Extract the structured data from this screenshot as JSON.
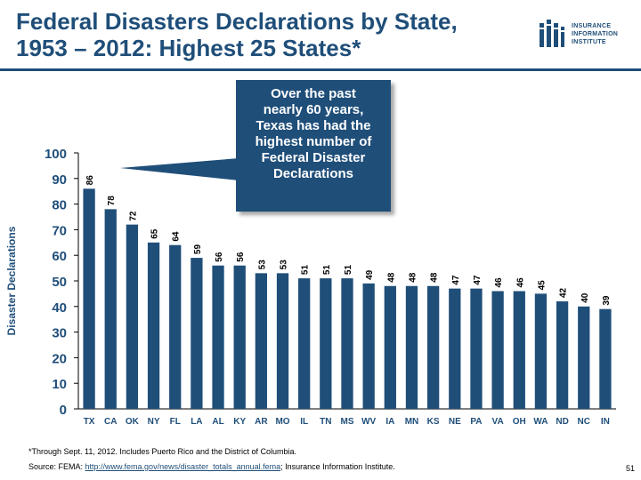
{
  "title": {
    "line1": "Federal Disasters Declarations by State,",
    "line2": "1953 – 2012: Highest 25 States*"
  },
  "logo": {
    "line1": "INSURANCE",
    "line2": "INFORMATION",
    "line3": "INSTITUTE"
  },
  "callout": {
    "line1": "Over the past",
    "line2": "nearly 60 years,",
    "line3": "Texas has had the",
    "line4": "highest number of",
    "line5": "Federal Disaster",
    "line6": "Declarations"
  },
  "colors": {
    "title": "#1f4e79",
    "bar": "#1f4e79",
    "callout_bg": "#1f4e79"
  },
  "chart_data": {
    "type": "bar",
    "title": "Federal Disasters Declarations by State, 1953 – 2012: Highest 25 States*",
    "xlabel": "",
    "ylabel": "Disaster Declarations",
    "ylim": [
      0,
      100
    ],
    "yticks": [
      0,
      10,
      20,
      30,
      40,
      50,
      60,
      70,
      80,
      90,
      100
    ],
    "grid": false,
    "categories": [
      "TX",
      "CA",
      "OK",
      "NY",
      "FL",
      "LA",
      "AL",
      "KY",
      "AR",
      "MO",
      "IL",
      "TN",
      "MS",
      "WV",
      "IA",
      "MN",
      "KS",
      "NE",
      "PA",
      "VA",
      "OH",
      "WA",
      "ND",
      "NC",
      "IN"
    ],
    "values": [
      86,
      78,
      72,
      65,
      64,
      59,
      56,
      56,
      53,
      53,
      51,
      51,
      51,
      49,
      48,
      48,
      48,
      47,
      47,
      46,
      46,
      45,
      42,
      40,
      39
    ]
  },
  "footnote": "*Through Sept. 11, 2012. Includes Puerto Rico and the District of Columbia.",
  "source": {
    "prefix": "Source:  FEMA: ",
    "link": "http://www.fema.gov/news/disaster_totals_annual.fema",
    "suffix": "; Insurance Information Institute."
  },
  "page_number": "51"
}
